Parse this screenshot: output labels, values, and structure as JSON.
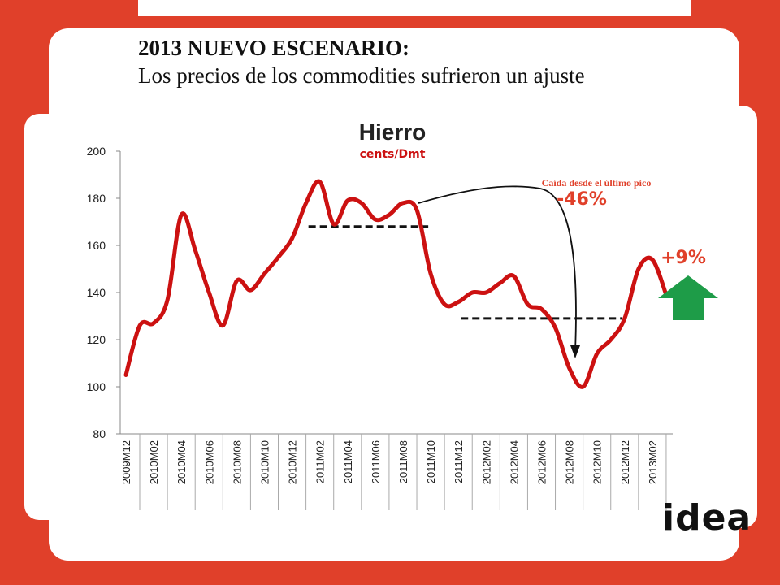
{
  "slide": {
    "title_bold": "2013 NUEVO ESCENARIO:",
    "title_regular": "Los precios de los commodities sufrieron un ajuste",
    "logo_text": "idea"
  },
  "colors": {
    "background": "#e0402a",
    "panel": "#ffffff",
    "series_line": "#cc1111",
    "subtitle": "#cc1111",
    "annotation_red": "#e0402a",
    "arrow_up": "#1e9c48",
    "dashed_line": "#111111"
  },
  "chart_data": {
    "type": "line",
    "title": "Hierro",
    "subtitle": "cents/Dmt",
    "ylim": [
      80,
      200
    ],
    "yticks": [
      80,
      100,
      120,
      140,
      160,
      180,
      200
    ],
    "grid": false,
    "x": [
      "2009M12",
      "2010M01",
      "2010M02",
      "2010M03",
      "2010M04",
      "2010M05",
      "2010M06",
      "2010M07",
      "2010M08",
      "2010M09",
      "2010M10",
      "2010M11",
      "2010M12",
      "2011M01",
      "2011M02",
      "2011M03",
      "2011M04",
      "2011M05",
      "2011M06",
      "2011M07",
      "2011M08",
      "2011M09",
      "2011M10",
      "2011M11",
      "2011M12",
      "2012M01",
      "2012M02",
      "2012M03",
      "2012M04",
      "2012M05",
      "2012M06",
      "2012M07",
      "2012M08",
      "2012M09",
      "2012M10",
      "2012M11",
      "2012M12",
      "2013M01",
      "2013M02",
      "2013M03"
    ],
    "xtick_labels": [
      "2009M12",
      "2010M02",
      "2010M04",
      "2010M06",
      "2010M08",
      "2010M10",
      "2010M12",
      "2011M02",
      "2011M04",
      "2011M06",
      "2011M08",
      "2011M10",
      "2011M12",
      "2012M02",
      "2012M04",
      "2012M06",
      "2012M08",
      "2012M10",
      "2012M12",
      "2013M02"
    ],
    "series": [
      {
        "values": [
          105,
          126,
          127,
          137,
          173,
          158,
          140,
          126,
          145,
          141,
          148,
          155,
          163,
          178,
          187,
          169,
          179,
          178,
          171,
          173,
          178,
          175,
          148,
          135,
          136,
          140,
          140,
          144,
          147,
          135,
          133,
          125,
          108,
          100,
          114,
          120,
          129,
          150,
          154,
          139
        ]
      }
    ],
    "annotations": {
      "drop_label": "Caída desde el último pico",
      "drop_value": "-46%",
      "rise_value": "+9%"
    },
    "reference_lines": [
      {
        "y": 168,
        "x_from": "2011M01",
        "x_to": "2011M10"
      },
      {
        "y": 129,
        "x_from": "2011M12",
        "x_to": "2012M12"
      }
    ]
  }
}
